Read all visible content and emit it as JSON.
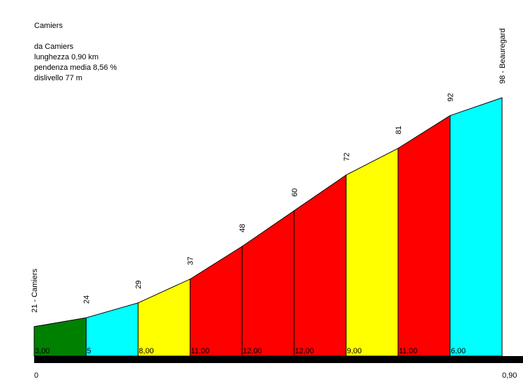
{
  "info": {
    "title": "Camiers",
    "from": "da Camiers",
    "length": "lunghezza 0,90 km",
    "avg_gradient": "pendenza media 8,56 %",
    "elevation_gain": "dislivello 77 m"
  },
  "chart_data": {
    "type": "area",
    "title": "Camiers",
    "x_unit": "km",
    "y_unit": "m",
    "xlim": [
      0,
      0.9
    ],
    "ylim": [
      0,
      98
    ],
    "x_tick_labels": [
      "0",
      "0,90"
    ],
    "points": [
      {
        "x": 0.0,
        "y": 21,
        "label": "21 - Camiers"
      },
      {
        "x": 0.1,
        "y": 24,
        "label": "24"
      },
      {
        "x": 0.2,
        "y": 29,
        "label": "29"
      },
      {
        "x": 0.3,
        "y": 37,
        "label": "37"
      },
      {
        "x": 0.4,
        "y": 48,
        "label": "48"
      },
      {
        "x": 0.5,
        "y": 60,
        "label": "60"
      },
      {
        "x": 0.6,
        "y": 72,
        "label": "72"
      },
      {
        "x": 0.7,
        "y": 81,
        "label": "81"
      },
      {
        "x": 0.8,
        "y": 92,
        "label": "92"
      },
      {
        "x": 0.9,
        "y": 98,
        "label": "98 - Beauregard"
      }
    ],
    "segments": [
      {
        "gradient": "3,00",
        "color": "#008000"
      },
      {
        "gradient": "5",
        "color": "#00ffff"
      },
      {
        "gradient": "8,00",
        "color": "#ffff00"
      },
      {
        "gradient": "11,00",
        "color": "#ff0000"
      },
      {
        "gradient": "12,00",
        "color": "#ff0000"
      },
      {
        "gradient": "12,00",
        "color": "#ff0000"
      },
      {
        "gradient": "9,00",
        "color": "#ffff00"
      },
      {
        "gradient": "11,00",
        "color": "#ff0000"
      },
      {
        "gradient": "6,00",
        "color": "#00ffff"
      }
    ]
  }
}
